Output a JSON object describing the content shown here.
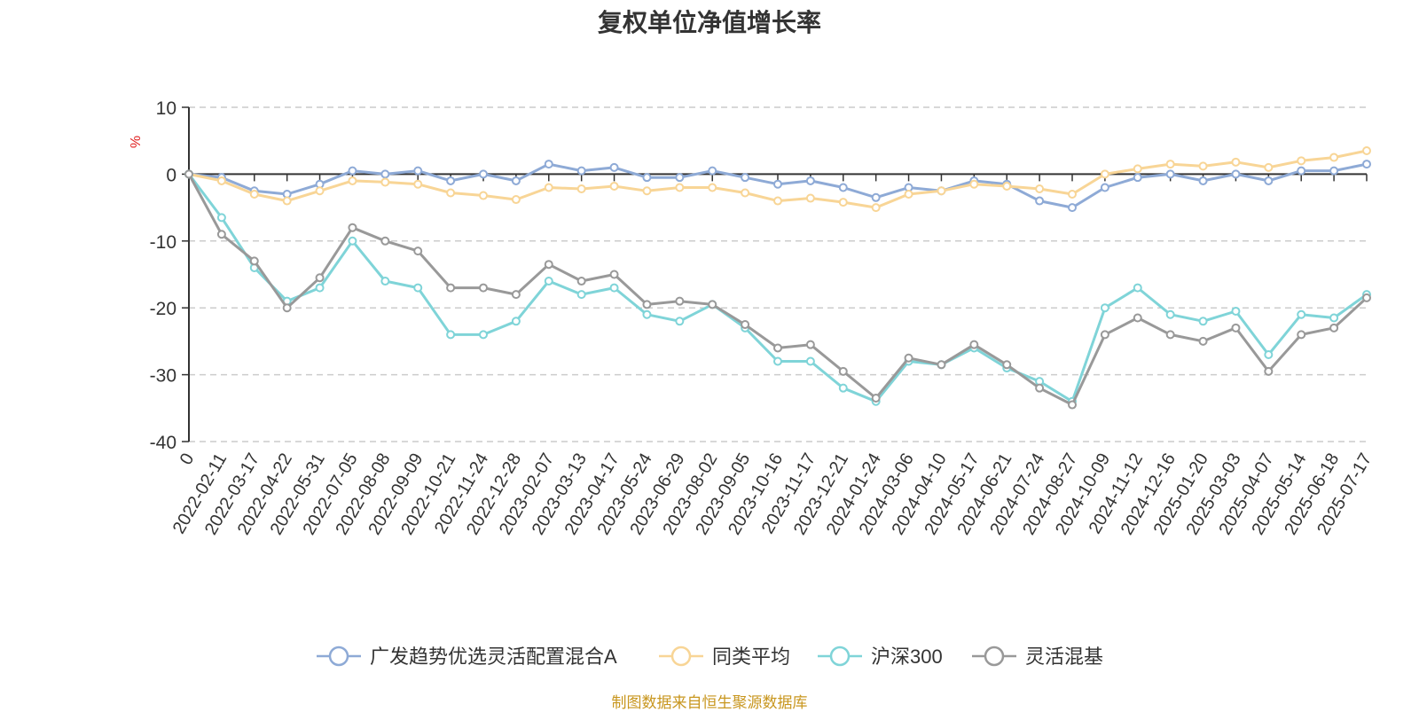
{
  "title": "复权单位净值增长率",
  "source": "制图数据来自恒生聚源数据库",
  "chart_data": {
    "type": "line",
    "ylabel": "%",
    "ylim": [
      -40,
      10
    ],
    "yticks": [
      10,
      0,
      -10,
      -20,
      -30,
      -40
    ],
    "grid": true,
    "legend_position": "bottom-center",
    "x_tick_labels": [
      "0",
      "2022-02-11",
      "2022-03-17",
      "2022-04-22",
      "2022-05-31",
      "2022-07-05",
      "2022-08-08",
      "2022-09-09",
      "2022-10-21",
      "2022-11-24",
      "2022-12-28",
      "2023-02-07",
      "2023-03-13",
      "2023-04-17",
      "2023-05-24",
      "2023-06-29",
      "2023-08-02",
      "2023-09-05",
      "2023-10-16",
      "2023-11-17",
      "2023-12-21",
      "2024-01-24",
      "2024-03-06",
      "2024-04-10",
      "2024-05-17",
      "2024-06-21",
      "2024-07-24",
      "2024-08-27",
      "2024-10-09",
      "2024-11-12",
      "2024-12-16",
      "2025-01-20",
      "2025-03-03",
      "2025-04-07",
      "2025-05-14",
      "2025-06-18",
      "2025-07-17"
    ],
    "series": [
      {
        "name": "广发趋势优选灵活配置混合A",
        "color": "#8eaad6",
        "values": [
          0,
          -0.5,
          -2.5,
          -3,
          -1.5,
          0.5,
          0,
          0.5,
          -1,
          0,
          -1,
          1.5,
          0.5,
          1,
          -0.5,
          -0.5,
          0.5,
          -0.5,
          -1.5,
          -1,
          -2,
          -3.5,
          -2,
          -2.5,
          -1,
          -1.5,
          -4,
          -5,
          -2,
          -0.5,
          0,
          -1,
          0,
          -1,
          0.5,
          0.5,
          1.5
        ]
      },
      {
        "name": "同类平均",
        "color": "#f8d596",
        "values": [
          0,
          -1,
          -3,
          -4,
          -2.5,
          -1,
          -1.2,
          -1.5,
          -2.8,
          -3.2,
          -3.8,
          -2,
          -2.2,
          -1.8,
          -2.5,
          -2,
          -2,
          -2.8,
          -4,
          -3.6,
          -4.2,
          -5,
          -3,
          -2.5,
          -1.5,
          -1.8,
          -2.2,
          -3,
          0,
          0.8,
          1.5,
          1.2,
          1.8,
          1,
          2,
          2.5,
          3.5
        ]
      },
      {
        "name": "沪深300",
        "color": "#7fd4d8",
        "values": [
          0,
          -6.5,
          -14,
          -19,
          -17,
          -10,
          -16,
          -17,
          -24,
          -24,
          -22,
          -16,
          -18,
          -17,
          -21,
          -22,
          -19.5,
          -23,
          -28,
          -28,
          -32,
          -34,
          -28,
          -28.5,
          -26,
          -29,
          -31,
          -34,
          -20,
          -17,
          -21,
          -22,
          -20.5,
          -27,
          -21,
          -21.5,
          -18
        ]
      },
      {
        "name": "灵活混基",
        "color": "#999999",
        "values": [
          0,
          -9,
          -13,
          -20,
          -15.5,
          -8,
          -10,
          -11.5,
          -17,
          -17,
          -18,
          -13.5,
          -16,
          -15,
          -19.5,
          -19,
          -19.5,
          -22.5,
          -26,
          -25.5,
          -29.5,
          -33.5,
          -27.5,
          -28.5,
          -25.5,
          -28.5,
          -32,
          -34.5,
          -24,
          -21.5,
          -24,
          -25,
          -23,
          -29.5,
          -24,
          -23,
          -18.5
        ]
      }
    ]
  }
}
